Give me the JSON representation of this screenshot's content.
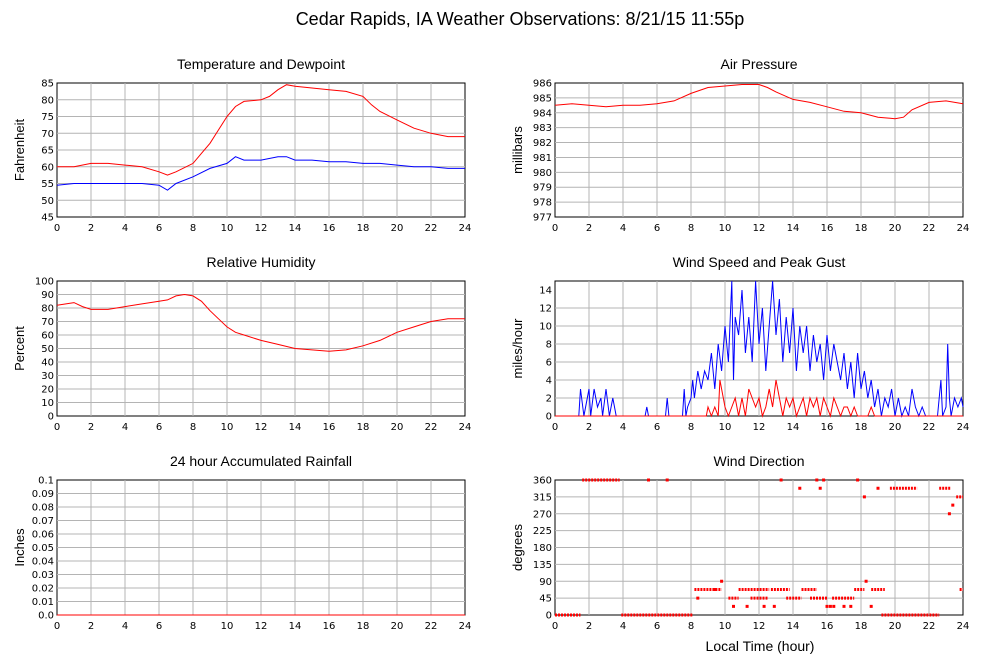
{
  "page": {
    "title": "Cedar Rapids, IA Weather Observations: 8/21/15 11:55p"
  },
  "xaxis_label": "Local Time (hour)",
  "colors": {
    "red": "#ff0000",
    "blue": "#0000ff",
    "grid": "#b4b4b4",
    "frame": "#000000"
  },
  "chart_data": [
    {
      "id": "temp",
      "type": "line",
      "title": "Temperature and Dewpoint",
      "ylabel": "Fahrenheit",
      "xlim": [
        0,
        24
      ],
      "ylim": [
        45,
        85
      ],
      "yticks": [
        45,
        50,
        55,
        60,
        65,
        70,
        75,
        80,
        85
      ],
      "xticks": [
        0,
        2,
        4,
        6,
        8,
        10,
        12,
        14,
        16,
        18,
        20,
        22,
        24
      ],
      "grid": true,
      "series": [
        {
          "color": "#ff0000",
          "x": [
            0,
            1,
            2,
            3,
            4,
            5,
            6,
            6.5,
            7,
            8,
            8.5,
            9,
            9.5,
            10,
            10.5,
            11,
            12,
            12.5,
            13,
            13.5,
            14,
            15,
            16,
            17,
            18,
            18.5,
            19,
            20,
            21,
            22,
            23,
            24
          ],
          "y": [
            60,
            60,
            61,
            61,
            60.5,
            60,
            58.5,
            57.5,
            58.5,
            61,
            64,
            67,
            71,
            75,
            78,
            79.5,
            80,
            81,
            83,
            84.5,
            84,
            83.5,
            83,
            82.5,
            81,
            78.5,
            76.5,
            74,
            71.5,
            70,
            69,
            69
          ]
        },
        {
          "color": "#0000ff",
          "x": [
            0,
            1,
            2,
            3,
            4,
            5,
            6,
            6.5,
            7,
            8,
            9,
            10,
            10.5,
            11,
            12,
            13,
            13.5,
            14,
            15,
            16,
            17,
            18,
            19,
            20,
            21,
            22,
            23,
            24
          ],
          "y": [
            54.5,
            55,
            55,
            55,
            55,
            55,
            54.5,
            53,
            55,
            57,
            59.5,
            61,
            63,
            62,
            62,
            63,
            63,
            62,
            62,
            61.5,
            61.5,
            61,
            61,
            60.5,
            60,
            60,
            59.5,
            59.5
          ]
        }
      ]
    },
    {
      "id": "pressure",
      "type": "line",
      "title": "Air Pressure",
      "ylabel": "millibars",
      "xlim": [
        0,
        24
      ],
      "ylim": [
        977,
        986
      ],
      "yticks": [
        977,
        978,
        979,
        980,
        981,
        982,
        983,
        984,
        985,
        986
      ],
      "xticks": [
        0,
        2,
        4,
        6,
        8,
        10,
        12,
        14,
        16,
        18,
        20,
        22,
        24
      ],
      "grid": true,
      "series": [
        {
          "color": "#ff0000",
          "x": [
            0,
            1,
            2,
            3,
            4,
            5,
            6,
            7,
            8,
            9,
            10,
            11,
            12,
            12.5,
            13,
            14,
            15,
            16,
            17,
            18,
            19,
            20,
            20.5,
            21,
            22,
            23,
            24
          ],
          "y": [
            984.5,
            984.6,
            984.5,
            984.4,
            984.5,
            984.5,
            984.6,
            984.8,
            985.3,
            985.7,
            985.8,
            985.9,
            985.9,
            985.7,
            985.4,
            984.9,
            984.7,
            984.4,
            984.1,
            984,
            983.7,
            983.6,
            983.7,
            984.2,
            984.7,
            984.8,
            984.6
          ]
        }
      ]
    },
    {
      "id": "humidity",
      "type": "line",
      "title": "Relative Humidity",
      "ylabel": "Percent",
      "xlim": [
        0,
        24
      ],
      "ylim": [
        0,
        100
      ],
      "yticks": [
        0,
        10,
        20,
        30,
        40,
        50,
        60,
        70,
        80,
        90,
        100
      ],
      "xticks": [
        0,
        2,
        4,
        6,
        8,
        10,
        12,
        14,
        16,
        18,
        20,
        22,
        24
      ],
      "grid": true,
      "series": [
        {
          "color": "#ff0000",
          "x": [
            0,
            1,
            1.5,
            2,
            3,
            4,
            5,
            6,
            6.5,
            7,
            7.5,
            8,
            8.5,
            9,
            9.5,
            10,
            10.5,
            11,
            12,
            13,
            14,
            15,
            16,
            17,
            18,
            19,
            20,
            21,
            22,
            22.5,
            23,
            24
          ],
          "y": [
            82,
            84,
            81,
            79,
            79,
            81,
            83,
            85,
            86,
            89,
            90,
            89,
            85,
            78,
            72,
            66,
            62,
            60,
            56,
            53,
            50,
            49,
            48,
            49,
            52,
            56,
            62,
            66,
            70,
            71,
            72,
            72
          ]
        }
      ]
    },
    {
      "id": "wind",
      "type": "line",
      "title": "Wind Speed and Peak Gust",
      "ylabel": "miles/hour",
      "xlim": [
        0,
        24
      ],
      "ylim": [
        0,
        15
      ],
      "yticks": [
        0,
        2,
        4,
        6,
        8,
        10,
        12,
        14
      ],
      "xticks": [
        0,
        2,
        4,
        6,
        8,
        10,
        12,
        14,
        16,
        18,
        20,
        22,
        24
      ],
      "grid": true,
      "series": [
        {
          "color": "#0000ff",
          "x": [
            0,
            1.4,
            1.5,
            1.7,
            2,
            2.1,
            2.3,
            2.5,
            2.7,
            2.8,
            3,
            3.2,
            3.4,
            3.6,
            3.8,
            5.3,
            5.4,
            5.5,
            6.5,
            6.6,
            6.7,
            7.5,
            7.6,
            7.7,
            7.8,
            8,
            8.1,
            8.2,
            8.4,
            8.6,
            8.8,
            9,
            9.2,
            9.4,
            9.6,
            9.8,
            10,
            10.2,
            10.4,
            10.5,
            10.6,
            10.8,
            11,
            11.2,
            11.4,
            11.6,
            11.8,
            12,
            12.2,
            12.4,
            12.6,
            12.8,
            13,
            13.2,
            13.4,
            13.6,
            13.8,
            14,
            14.2,
            14.4,
            14.6,
            14.8,
            15,
            15.2,
            15.4,
            15.6,
            15.8,
            16,
            16.2,
            16.4,
            16.6,
            16.8,
            17,
            17.2,
            17.4,
            17.6,
            17.8,
            18,
            18.2,
            18.4,
            18.6,
            18.8,
            19,
            19.2,
            19.4,
            19.6,
            19.8,
            20,
            20.2,
            20.4,
            20.6,
            20.8,
            21,
            21.2,
            21.4,
            21.6,
            21.8,
            22,
            22.5,
            22.7,
            22.8,
            23,
            23.1,
            23.2,
            23.3,
            23.5,
            23.7,
            23.9,
            24
          ],
          "y": [
            0,
            0,
            3,
            0,
            3,
            0,
            3,
            1,
            2,
            0,
            3,
            0,
            2,
            0,
            0,
            0,
            1,
            0,
            0,
            2,
            0,
            0,
            3,
            0,
            1,
            2,
            4,
            2,
            5,
            3,
            5,
            4,
            7,
            3,
            8,
            5,
            10,
            6,
            15,
            4,
            11,
            9,
            14,
            7,
            11,
            6,
            15,
            8,
            12,
            5,
            10,
            15,
            9,
            13,
            6,
            11,
            7,
            12,
            5,
            10,
            7,
            10,
            5,
            9,
            6,
            8,
            4,
            9,
            5,
            8,
            6,
            4,
            7,
            3,
            6,
            2,
            7,
            3,
            5,
            2,
            4,
            1,
            3,
            0,
            2,
            1,
            3,
            0,
            2,
            0,
            1,
            0,
            3,
            1,
            0,
            1,
            0,
            0,
            0,
            4,
            0,
            1,
            8,
            2,
            0,
            2,
            1,
            2,
            1
          ]
        },
        {
          "color": "#ff0000",
          "x": [
            0,
            8.9,
            9,
            9.2,
            9.4,
            9.6,
            9.7,
            10,
            10.2,
            10.4,
            10.6,
            10.8,
            11,
            11.2,
            11.4,
            11.6,
            11.8,
            12,
            12.2,
            12.4,
            12.6,
            12.8,
            13,
            13.2,
            13.4,
            13.6,
            13.8,
            14,
            14.2,
            14.4,
            14.6,
            14.8,
            15,
            15.2,
            15.4,
            15.6,
            15.8,
            16,
            16.2,
            16.4,
            16.6,
            16.8,
            17,
            17.2,
            17.4,
            17.6,
            17.8,
            18,
            18.2,
            18.4,
            18.6,
            18.8,
            19,
            24
          ],
          "y": [
            0,
            0,
            1,
            0,
            1,
            0,
            4,
            1,
            0,
            1,
            2,
            0,
            2,
            0,
            3,
            2,
            1,
            2,
            0,
            1,
            3,
            1,
            4,
            2,
            0,
            2,
            1,
            2,
            0,
            1,
            2,
            0,
            2,
            1,
            2,
            0,
            2,
            1,
            0,
            2,
            1,
            0,
            1,
            1,
            0,
            1,
            0,
            0,
            0,
            0,
            1,
            0,
            0,
            0
          ]
        }
      ]
    },
    {
      "id": "rain",
      "type": "line",
      "title": "24 hour Accumulated Rainfall",
      "ylabel": "Inches",
      "xlim": [
        0,
        24
      ],
      "ylim": [
        0,
        0.1
      ],
      "yticks": [
        "0.0",
        "0.01",
        "0.02",
        "0.03",
        "0.04",
        "0.05",
        "0.06",
        "0.07",
        "0.08",
        "0.09",
        "0.1"
      ],
      "xticks": [
        0,
        2,
        4,
        6,
        8,
        10,
        12,
        14,
        16,
        18,
        20,
        22,
        24
      ],
      "grid": true,
      "series": [
        {
          "color": "#ff0000",
          "x": [
            0,
            24
          ],
          "y": [
            0,
            0
          ]
        }
      ]
    },
    {
      "id": "winddir",
      "type": "scatter",
      "title": "Wind Direction",
      "ylabel": "degrees",
      "xlabel": "Local Time (hour)",
      "xlim": [
        0,
        24
      ],
      "ylim": [
        0,
        360
      ],
      "yticks": [
        0,
        45,
        90,
        135,
        180,
        225,
        270,
        315,
        360
      ],
      "xticks": [
        0,
        2,
        4,
        6,
        8,
        10,
        12,
        14,
        16,
        18,
        20,
        22,
        24
      ],
      "grid": true,
      "series": [
        {
          "color": "#ff0000",
          "segments": [
            {
              "x0": 0,
              "x1": 1.5,
              "y": 0
            },
            {
              "x0": 1.6,
              "x1": 3.8,
              "y": 360
            },
            {
              "x0": 3.9,
              "x1": 8.1,
              "y": 0
            },
            {
              "x0": 8.2,
              "x1": 9.8,
              "y": 68
            },
            {
              "x0": 10.2,
              "x1": 10.8,
              "y": 45
            },
            {
              "x0": 10.8,
              "x1": 12.6,
              "y": 68
            },
            {
              "x0": 11.5,
              "x1": 12.5,
              "y": 45
            },
            {
              "x0": 12.7,
              "x1": 13.8,
              "y": 68
            },
            {
              "x0": 13.6,
              "x1": 14.5,
              "y": 45
            },
            {
              "x0": 14.5,
              "x1": 15.4,
              "y": 68
            },
            {
              "x0": 15.0,
              "x1": 16.0,
              "y": 45
            },
            {
              "x0": 16.3,
              "x1": 17.6,
              "y": 45
            },
            {
              "x0": 17.6,
              "x1": 18.2,
              "y": 68
            },
            {
              "x0": 18.6,
              "x1": 19.4,
              "y": 68
            },
            {
              "x0": 19.2,
              "x1": 22.6,
              "y": 0
            },
            {
              "x0": 19.7,
              "x1": 21.3,
              "y": 338
            },
            {
              "x0": 22.6,
              "x1": 23.3,
              "y": 338
            },
            {
              "x0": 23.6,
              "x1": 24,
              "y": 315
            },
            {
              "x0": 23.8,
              "x1": 24,
              "y": 68
            }
          ],
          "points": [
            [
              5.5,
              360
            ],
            [
              6.6,
              360
            ],
            [
              8.4,
              45
            ],
            [
              9.4,
              68
            ],
            [
              9.8,
              90
            ],
            [
              10.5,
              23
            ],
            [
              11.3,
              23
            ],
            [
              12.3,
              23
            ],
            [
              12.9,
              23
            ],
            [
              13.3,
              360
            ],
            [
              14.4,
              338
            ],
            [
              15.4,
              360
            ],
            [
              15.6,
              338
            ],
            [
              15.8,
              360
            ],
            [
              16.0,
              23
            ],
            [
              16.4,
              23
            ],
            [
              17.0,
              23
            ],
            [
              17.4,
              23
            ],
            [
              17.8,
              360
            ],
            [
              18.2,
              315
            ],
            [
              18.3,
              90
            ],
            [
              18.6,
              23
            ],
            [
              19.0,
              338
            ],
            [
              23.2,
              270
            ],
            [
              23.4,
              293
            ],
            [
              16.2,
              23
            ]
          ]
        }
      ]
    }
  ]
}
